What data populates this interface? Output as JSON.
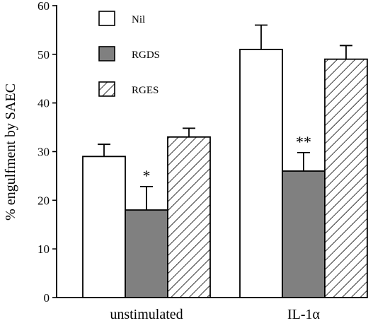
{
  "chart_data": {
    "type": "bar",
    "ylabel": "% engulfment by SAEC",
    "ylim": [
      0,
      60
    ],
    "yticks": [
      0,
      10,
      20,
      30,
      40,
      50,
      60
    ],
    "categories": [
      "unstimulated",
      "IL-1α"
    ],
    "series": [
      {
        "name": "Nil",
        "values": [
          29,
          51
        ],
        "errors": [
          2.5,
          5
        ],
        "fill": "#ffffff"
      },
      {
        "name": "RGDS",
        "values": [
          18,
          26
        ],
        "errors": [
          4.8,
          3.8
        ],
        "fill": "#808080"
      },
      {
        "name": "RGES",
        "values": [
          33,
          49
        ],
        "errors": [
          1.8,
          2.8
        ],
        "fill": "hatch"
      }
    ],
    "annotations": [
      {
        "category": 0,
        "series": 1,
        "text": "*"
      },
      {
        "category": 1,
        "series": 1,
        "text": "**"
      }
    ],
    "legend_placement": "top-left",
    "grid": false
  }
}
